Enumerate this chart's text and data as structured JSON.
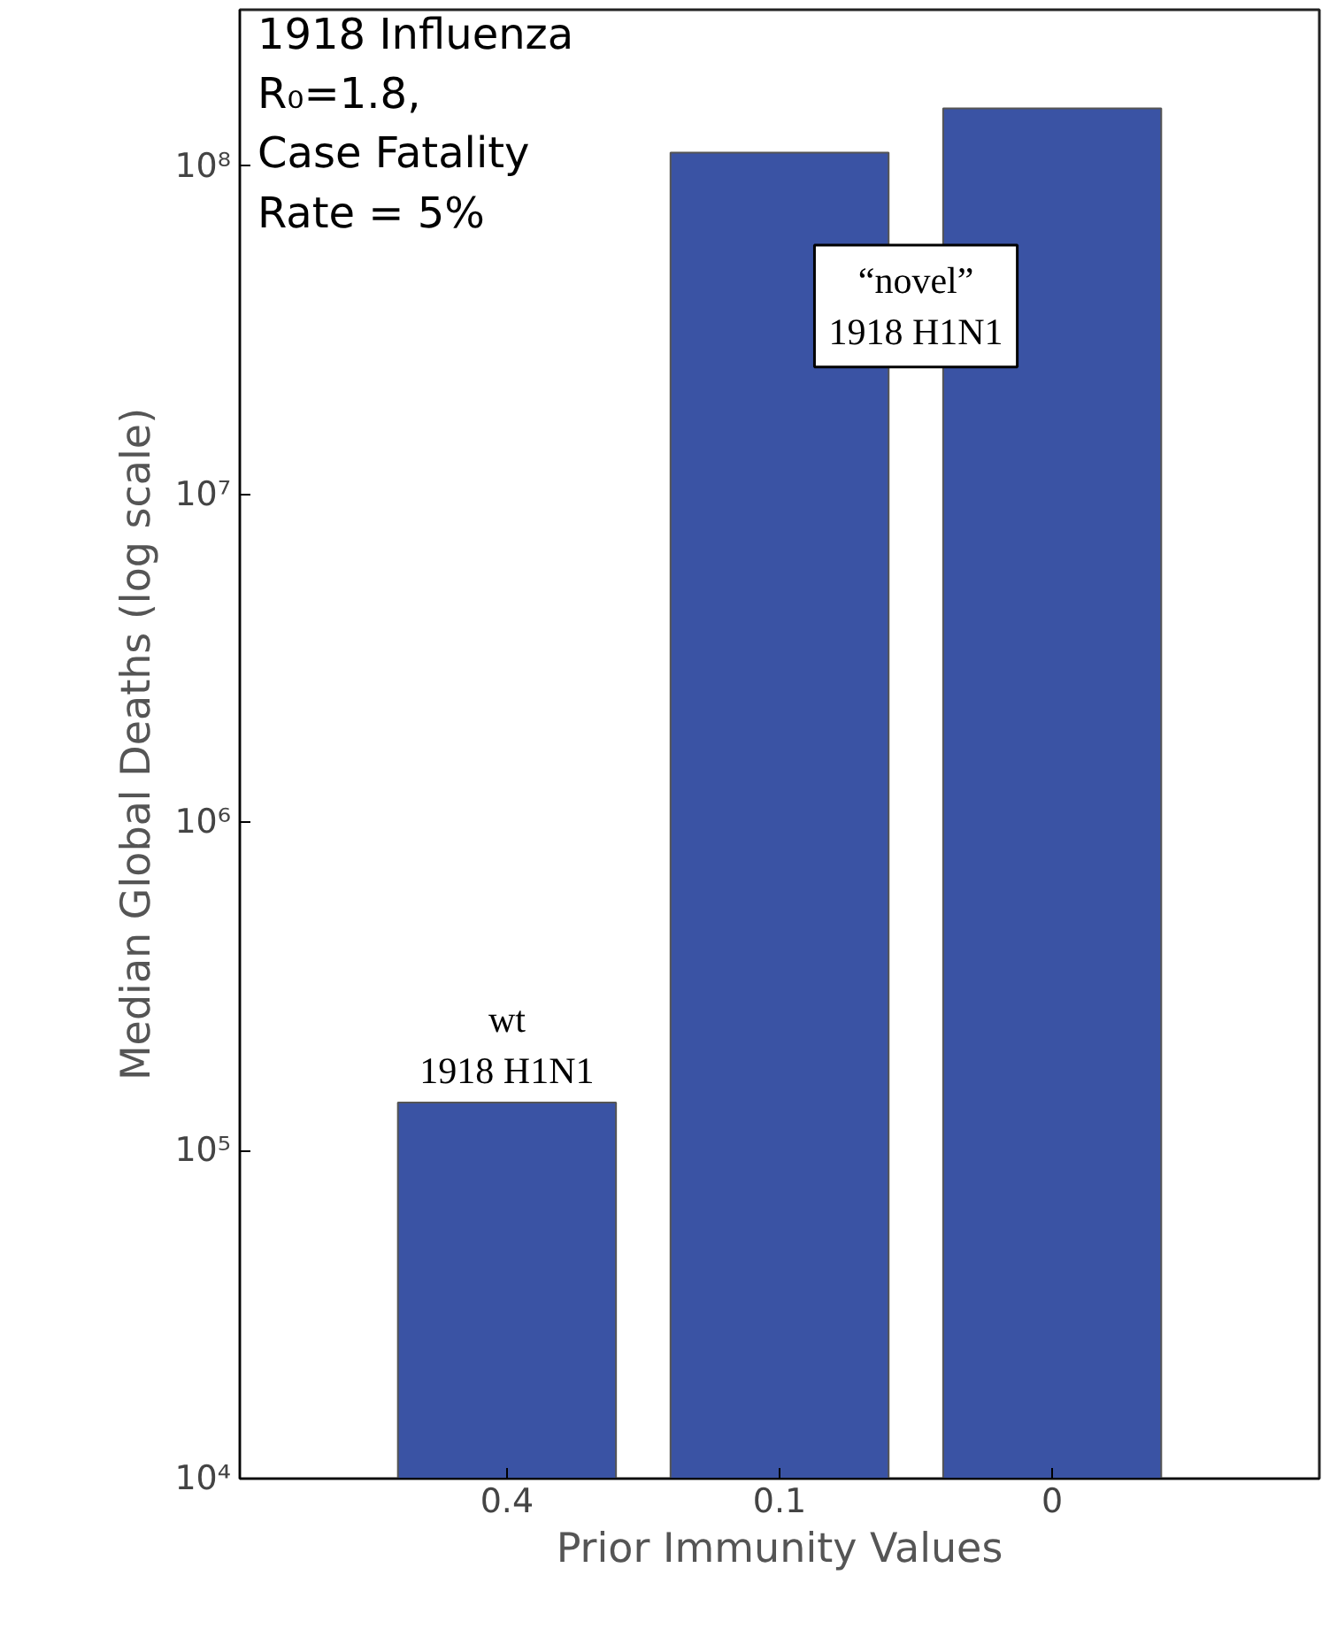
{
  "chart_data": {
    "type": "bar",
    "xlabel": "Prior Immunity Values",
    "ylabel": "Median Global Deaths (log scale)",
    "categories": [
      "0.4",
      "0.1",
      "0"
    ],
    "values": [
      140000,
      110000000,
      150000000
    ],
    "color": "#3a53a4",
    "log": true,
    "ylim": [
      10000,
      300000000
    ],
    "yticks": [
      {
        "value": 10000,
        "label": "10⁴"
      },
      {
        "value": 100000,
        "label": "10⁵"
      },
      {
        "value": 1000000,
        "label": "10⁶"
      },
      {
        "value": 10000000,
        "label": "10⁷"
      },
      {
        "value": 100000000,
        "label": "10⁸"
      }
    ],
    "grid": false,
    "annotations": [
      "1918 Influenza\nR₀=1.8,\nCase Fatality\nRate = 5%",
      {
        "text": "wt\n1918 H1N1",
        "x": "0.4",
        "y": 140000
      },
      "“novel”\n1918 H1N1"
    ]
  }
}
